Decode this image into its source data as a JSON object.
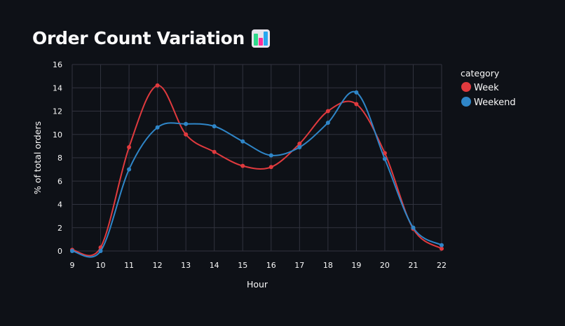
{
  "header": {
    "title": "Order Count Variation",
    "icon": "bar-chart-emoji-icon"
  },
  "chart_data": {
    "type": "line",
    "title": "Order Count Variation",
    "xlabel": "Hour",
    "ylabel": "% of total orders",
    "x": [
      9,
      10,
      11,
      12,
      13,
      14,
      15,
      16,
      17,
      18,
      19,
      20,
      21,
      22
    ],
    "xticks": [
      "9",
      "10",
      "11",
      "12",
      "13",
      "14",
      "15",
      "16",
      "17",
      "18",
      "19",
      "20",
      "21",
      "22"
    ],
    "yticks": [
      "0",
      "2",
      "4",
      "6",
      "8",
      "10",
      "12",
      "14",
      "16"
    ],
    "ylim": [
      0,
      16
    ],
    "grid": true,
    "legend": {
      "title": "category",
      "placement": "right"
    },
    "series": [
      {
        "name": "Week",
        "color": "#e03a3e",
        "values": [
          0.1,
          0.3,
          8.9,
          14.2,
          10.0,
          8.5,
          7.3,
          7.2,
          9.2,
          12.0,
          12.6,
          8.4,
          1.9,
          0.2
        ]
      },
      {
        "name": "Weekend",
        "color": "#2f86c8",
        "values": [
          0.0,
          0.0,
          7.0,
          10.6,
          10.9,
          10.7,
          9.4,
          8.2,
          8.9,
          11.0,
          13.6,
          7.9,
          2.0,
          0.5
        ]
      }
    ]
  }
}
